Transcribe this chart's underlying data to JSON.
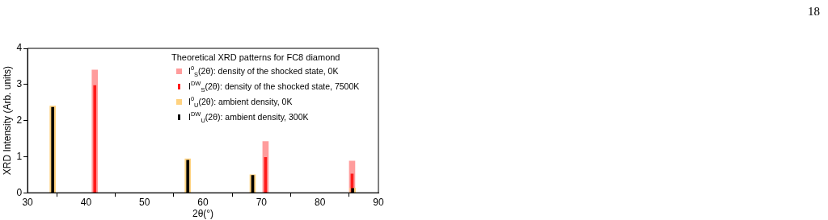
{
  "chart_data": {
    "type": "bar",
    "xlabel": "2θ(°)",
    "ylabel": "XRD Intensity (Arb. units)",
    "legend_title": "Theoretical XRD patterns for FC8 diamond",
    "xlim": [
      30,
      90
    ],
    "xticks": [
      30,
      40,
      50,
      60,
      70,
      80,
      90
    ],
    "ylim": [
      0,
      4
    ],
    "yticks": [
      0,
      1,
      2,
      3,
      4
    ],
    "grid": false,
    "legend": "top right",
    "annotations": [
      "18"
    ],
    "series": [
      {
        "name": "I$^{0}$$_{S}$(2θ): density of the shocked state,  0K",
        "color": "#ff9c9c",
        "x": [
          41.5,
          70.7,
          85.5
        ],
        "values": [
          3.4,
          1.42,
          0.88
        ]
      },
      {
        "name": "I$^{0}$$_{U}$(2θ): ambient density,  0K",
        "color": "#ffd27f",
        "x": [
          34.3,
          57.4,
          68.5,
          85.6
        ],
        "values": [
          2.4,
          0.94,
          0.5,
          0.13
        ]
      },
      {
        "name": "I$^{DW}$$_{S}$(2θ): density of the shocked state,  7500K",
        "color": "#ff1a1a",
        "x": [
          41.5,
          70.7,
          85.5
        ],
        "values": [
          2.97,
          0.98,
          0.52
        ]
      },
      {
        "name": "I$^{DW}$$_{U}$(2θ): ambient density,  300K",
        "color": "#000000",
        "x": [
          34.3,
          57.4,
          68.5,
          85.6
        ],
        "values": [
          2.37,
          0.9,
          0.48,
          0.12
        ]
      }
    ]
  }
}
